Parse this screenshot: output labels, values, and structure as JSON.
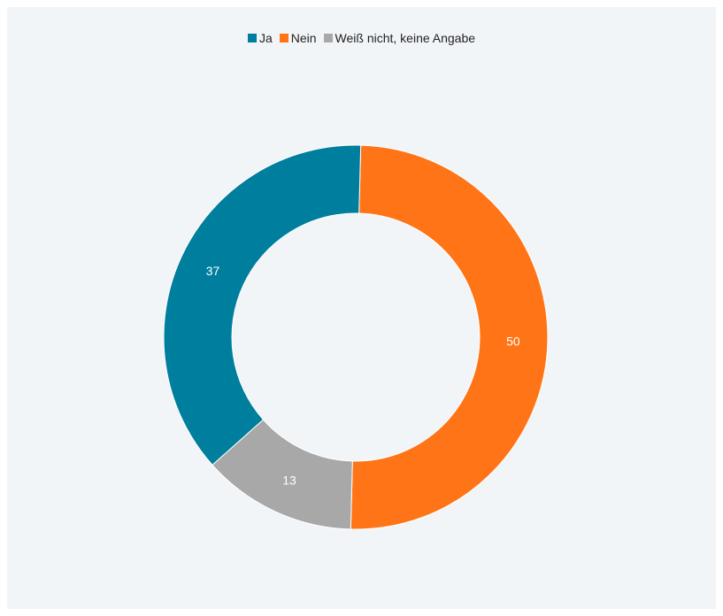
{
  "chart_data": {
    "type": "pie",
    "variant": "donut",
    "categories": [
      "Ja",
      "Nein",
      "Weiß nicht, keine Angabe"
    ],
    "values": [
      37,
      50,
      13
    ],
    "colors": [
      "#007e9e",
      "#ff7417",
      "#a8a8a8"
    ],
    "legend": "top-center",
    "title": "",
    "background": "#f2f5f8"
  }
}
